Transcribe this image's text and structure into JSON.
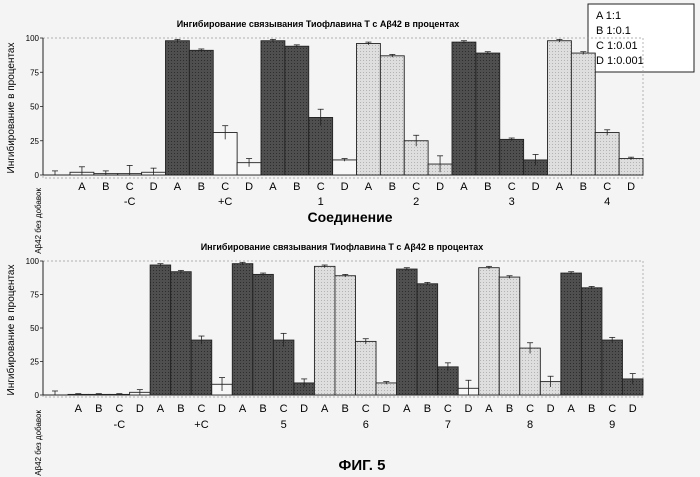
{
  "figure": {
    "caption": "ФИГ. 5",
    "legend": [
      {
        "key": "A",
        "ratio": "1:1"
      },
      {
        "key": "B",
        "ratio": "1:0.1"
      },
      {
        "key": "C",
        "ratio": "1:0.01"
      },
      {
        "key": "D",
        "ratio": "1:0.001"
      }
    ],
    "colors": {
      "dark": "#4f4f4f",
      "light": "#dcdcdc",
      "white": "#f7f7f7",
      "line": "#222222"
    }
  },
  "chart_data": [
    {
      "type": "bar",
      "title": "Ингибирование связывания Тиофлавина Т с Аβ42 в процентах",
      "ylabel": "Ингибирование в процентах",
      "xlabel": "Соединение",
      "ylim": [
        0,
        100
      ],
      "yticks": [
        0,
        25,
        50,
        75,
        100
      ],
      "grid": false,
      "baseline_label": "Аβ42 без добавок",
      "baseline": {
        "value": 0,
        "err": 3
      },
      "groups": [
        {
          "name": "-C",
          "values": [
            2,
            1,
            1,
            2
          ],
          "errors": [
            4,
            2,
            6,
            3
          ]
        },
        {
          "name": "+C",
          "values": [
            98,
            91,
            31,
            9
          ],
          "errors": [
            1,
            1,
            5,
            3
          ]
        },
        {
          "name": "1",
          "values": [
            98,
            94,
            42,
            11
          ],
          "errors": [
            1,
            1,
            6,
            1
          ]
        },
        {
          "name": "2",
          "values": [
            96,
            87,
            25,
            8
          ],
          "errors": [
            1,
            1,
            4,
            6
          ]
        },
        {
          "name": "3",
          "values": [
            97,
            89,
            26,
            11
          ],
          "errors": [
            1,
            1,
            1,
            4
          ]
        },
        {
          "name": "4",
          "values": [
            98,
            89,
            31,
            12
          ],
          "errors": [
            1,
            1,
            2,
            1
          ]
        }
      ]
    },
    {
      "type": "bar",
      "title": "Ингибирование связывания Тиофлавина Т с Аβ42 в процентах",
      "ylabel": "Ингибирование в процентах",
      "xlabel": "",
      "ylim": [
        0,
        100
      ],
      "yticks": [
        0,
        25,
        50,
        75,
        100
      ],
      "grid": false,
      "baseline_label": "Аβ42 без добавок",
      "baseline": {
        "value": 0,
        "err": 3
      },
      "groups": [
        {
          "name": "-C",
          "values": [
            0,
            0,
            0,
            2
          ],
          "errors": [
            1,
            1,
            1,
            2
          ]
        },
        {
          "name": "+C",
          "values": [
            97,
            92,
            41,
            8
          ],
          "errors": [
            1,
            1,
            3,
            5
          ]
        },
        {
          "name": "5",
          "values": [
            98,
            90,
            41,
            9
          ],
          "errors": [
            1,
            1,
            5,
            3
          ]
        },
        {
          "name": "6",
          "values": [
            96,
            89,
            40,
            9
          ],
          "errors": [
            1,
            1,
            2,
            1
          ]
        },
        {
          "name": "7",
          "values": [
            94,
            83,
            21,
            5
          ],
          "errors": [
            1,
            1,
            3,
            6
          ]
        },
        {
          "name": "8",
          "values": [
            95,
            88,
            35,
            10
          ],
          "errors": [
            1,
            1,
            4,
            4
          ]
        },
        {
          "name": "9",
          "values": [
            91,
            80,
            41,
            12
          ],
          "errors": [
            1,
            1,
            2,
            4
          ]
        }
      ]
    }
  ]
}
